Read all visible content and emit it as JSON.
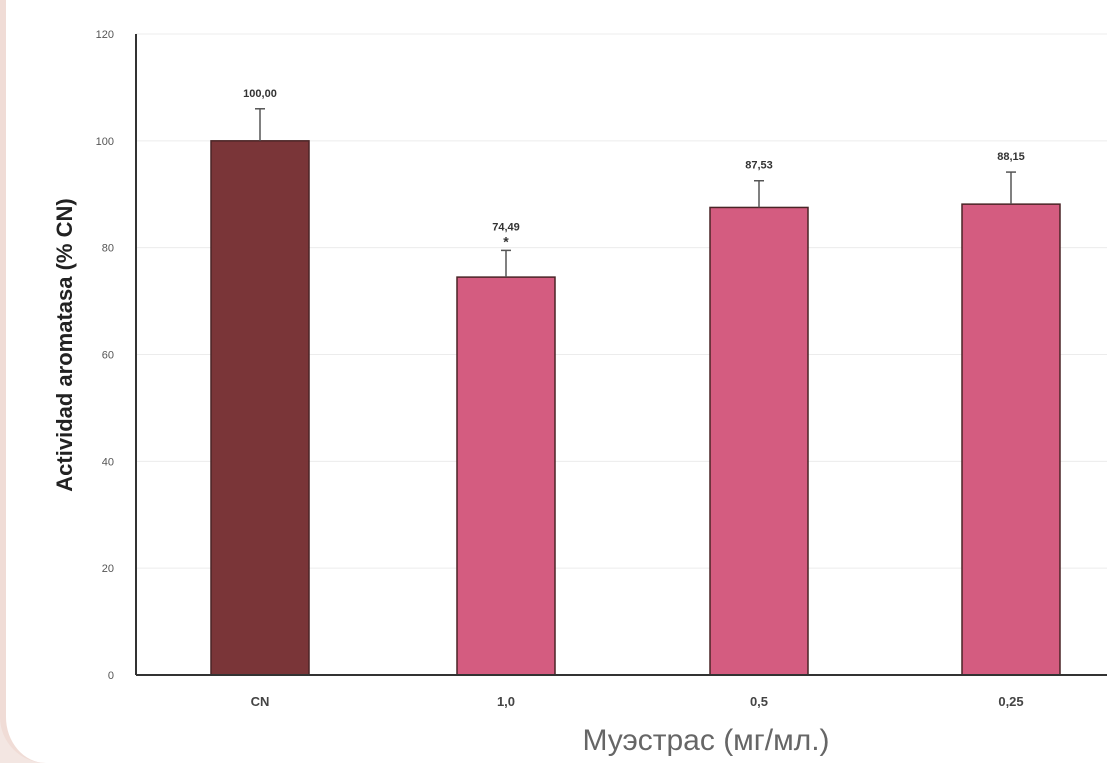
{
  "chart_data": {
    "type": "bar",
    "categories": [
      "CN",
      "1,0",
      "0,5",
      "0,25"
    ],
    "values": [
      100.0,
      74.49,
      87.53,
      88.15
    ],
    "data_labels": [
      "100,00",
      "74,49",
      "87,53",
      "88,15"
    ],
    "error_plus": [
      6,
      5,
      5,
      6
    ],
    "significance": [
      "",
      "*",
      "",
      ""
    ],
    "xlabel": "Муэстрас (мг/мл.)",
    "ylabel": "Actividad aromatasa (% CN)",
    "ylim": [
      0,
      120
    ],
    "yticks": [
      "0",
      "20",
      "40",
      "60",
      "80",
      "100",
      "120"
    ],
    "grid": true,
    "colors": [
      "#7a3538",
      "#d45c80",
      "#d45c80",
      "#d45c80"
    ]
  }
}
